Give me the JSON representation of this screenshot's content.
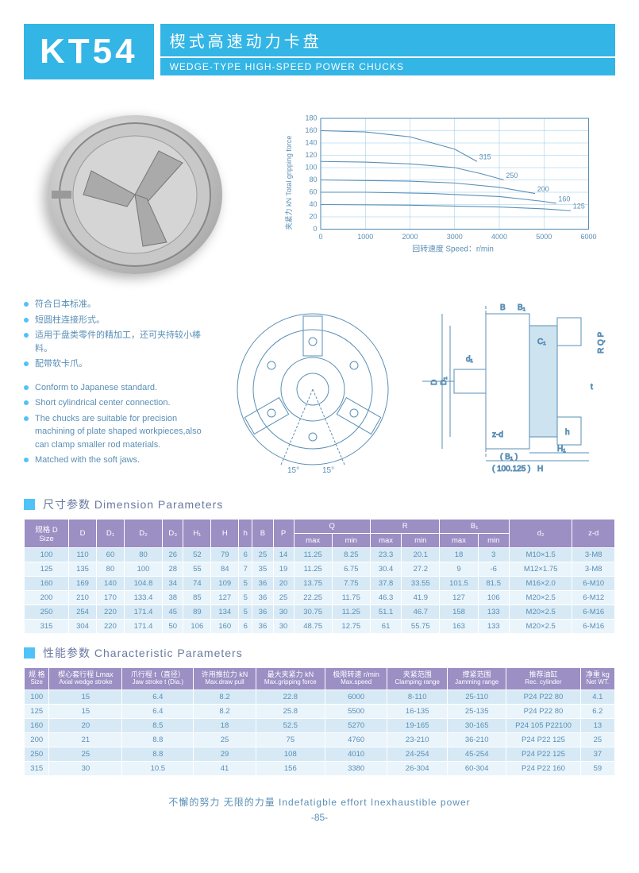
{
  "header": {
    "model": "KT54",
    "title_zh": "楔式高速动力卡盘",
    "title_en": "WEDGE-TYPE HIGH-SPEED POWER CHUCKS"
  },
  "chart": {
    "type": "line",
    "y_label_zh": "夹紧力 kN",
    "y_label_en": "Total gripping force",
    "x_label": "回转速度  Speed：r/min",
    "xlim": [
      0,
      6000
    ],
    "ylim": [
      0,
      180
    ],
    "xtick_step": 1000,
    "ytick_step": 20,
    "grid_color": "#88c5e5",
    "axis_color": "#5a8fb5",
    "curve_color": "#5a8fb5",
    "background_color": "#ffffff",
    "series": [
      {
        "label": "315",
        "points": [
          [
            0,
            160
          ],
          [
            1000,
            158
          ],
          [
            2000,
            150
          ],
          [
            3000,
            130
          ],
          [
            3500,
            110
          ]
        ]
      },
      {
        "label": "250",
        "points": [
          [
            0,
            110
          ],
          [
            1000,
            109
          ],
          [
            2000,
            106
          ],
          [
            3000,
            100
          ],
          [
            3600,
            90
          ],
          [
            4100,
            80
          ]
        ]
      },
      {
        "label": "200",
        "points": [
          [
            0,
            80
          ],
          [
            1000,
            79
          ],
          [
            2000,
            78
          ],
          [
            3000,
            75
          ],
          [
            4000,
            68
          ],
          [
            4800,
            58
          ]
        ]
      },
      {
        "label": "160",
        "points": [
          [
            0,
            60
          ],
          [
            1000,
            60
          ],
          [
            2500,
            58
          ],
          [
            4000,
            53
          ],
          [
            5000,
            45
          ],
          [
            5275,
            42
          ]
        ]
      },
      {
        "label": "125",
        "points": [
          [
            0,
            40
          ],
          [
            2000,
            39
          ],
          [
            4000,
            36
          ],
          [
            5000,
            33
          ],
          [
            5600,
            30
          ]
        ]
      }
    ]
  },
  "bullets_zh": [
    "符合日本标准。",
    "短圆柱连接形式。",
    "适用于盘类零件的精加工，还可夹持较小棒料。",
    "配带软卡爪。"
  ],
  "bullets_en": [
    "Conform to Japanese standard.",
    "Short cylindrical center connection.",
    "The chucks are suitable for precision machining of plate shaped workpieces,also can clamp smaller rod materials.",
    "Matched with the soft jaws."
  ],
  "diagram_labels": {
    "angle": "15°",
    "dims": [
      "D",
      "D₁",
      "d₁",
      "C₁",
      "B",
      "B₁",
      "z-d",
      "(B₁)",
      "(100.125)",
      "h",
      "H₁",
      "H",
      "t",
      "R",
      "Q",
      "P"
    ]
  },
  "section1": {
    "title": "尺寸参数   Dimension Parameters"
  },
  "dim_table": {
    "headers_top": [
      "规格 D\nSize",
      "D",
      "D₁",
      "D₂",
      "D₃",
      "H₁",
      "H",
      "h",
      "B",
      "P",
      "Q",
      "",
      "R",
      "",
      "B₁",
      "",
      "d₂",
      "z-d"
    ],
    "group_sub": [
      "max",
      "min",
      "max",
      "min",
      "max",
      "min"
    ],
    "rows": [
      [
        "100",
        "110",
        "60",
        "80",
        "26",
        "52",
        "79",
        "6",
        "25",
        "14",
        "11.25",
        "8.25",
        "23.3",
        "20.1",
        "18",
        "3",
        "M10×1.5",
        "3-M8"
      ],
      [
        "125",
        "135",
        "80",
        "100",
        "28",
        "55",
        "84",
        "7",
        "35",
        "19",
        "11.25",
        "6.75",
        "30.4",
        "27.2",
        "9",
        "-6",
        "M12×1.75",
        "3-M8"
      ],
      [
        "160",
        "169",
        "140",
        "104.8",
        "34",
        "74",
        "109",
        "5",
        "36",
        "20",
        "13.75",
        "7.75",
        "37.8",
        "33.55",
        "101.5",
        "81.5",
        "M16×2.0",
        "6-M10"
      ],
      [
        "200",
        "210",
        "170",
        "133.4",
        "38",
        "85",
        "127",
        "5",
        "36",
        "25",
        "22.25",
        "11.75",
        "46.3",
        "41.9",
        "127",
        "106",
        "M20×2.5",
        "6-M12"
      ],
      [
        "250",
        "254",
        "220",
        "171.4",
        "45",
        "89",
        "134",
        "5",
        "36",
        "30",
        "30.75",
        "11.25",
        "51.1",
        "46.7",
        "158",
        "133",
        "M20×2.5",
        "6-M16"
      ],
      [
        "315",
        "304",
        "220",
        "171.4",
        "50",
        "106",
        "160",
        "6",
        "36",
        "30",
        "48.75",
        "12.75",
        "61",
        "55.75",
        "163",
        "133",
        "M20×2.5",
        "6-M16"
      ]
    ]
  },
  "section2": {
    "title": "性能参数   Characteristic Parameters"
  },
  "char_table": {
    "headers": [
      {
        "zh": "规 格",
        "en": "Size"
      },
      {
        "zh": "楔心套行程 Lmax",
        "en": "Axial wedge stroke"
      },
      {
        "zh": "爪行程 t（直径）",
        "en": "Jaw stroke t (Dia.)"
      },
      {
        "zh": "许用推拉力 kN",
        "en": "Max.draw pull"
      },
      {
        "zh": "最大夹紧力 kN",
        "en": "Max.gripping force"
      },
      {
        "zh": "极限转速 r/min",
        "en": "Max.speed"
      },
      {
        "zh": "夹紧范围",
        "en": "Clamping range"
      },
      {
        "zh": "撑紧范围",
        "en": "Jamming range"
      },
      {
        "zh": "推荐油缸",
        "en": "Rec. cylinder"
      },
      {
        "zh": "净重 kg",
        "en": "Net WT."
      }
    ],
    "rows": [
      [
        "100",
        "15",
        "6.4",
        "8.2",
        "22.8",
        "6000",
        "8-110",
        "25-110",
        "P24 P22 80",
        "4.1"
      ],
      [
        "125",
        "15",
        "6.4",
        "8.2",
        "25.8",
        "5500",
        "16-135",
        "25-135",
        "P24 P22 80",
        "6.2"
      ],
      [
        "160",
        "20",
        "8.5",
        "18",
        "52.5",
        "5270",
        "19-165",
        "30-165",
        "P24 105 P22100",
        "13"
      ],
      [
        "200",
        "21",
        "8.8",
        "25",
        "75",
        "4760",
        "23-210",
        "36-210",
        "P24 P22 125",
        "25"
      ],
      [
        "250",
        "25",
        "8.8",
        "29",
        "108",
        "4010",
        "24-254",
        "45-254",
        "P24 P22 125",
        "37"
      ],
      [
        "315",
        "30",
        "10.5",
        "41",
        "156",
        "3380",
        "26-304",
        "60-304",
        "P24 P22 160",
        "59"
      ]
    ]
  },
  "footer": {
    "slogan": "不懈的努力  无限的力量    Indefatigble effort  Inexhaustible power",
    "page": "-85-"
  }
}
